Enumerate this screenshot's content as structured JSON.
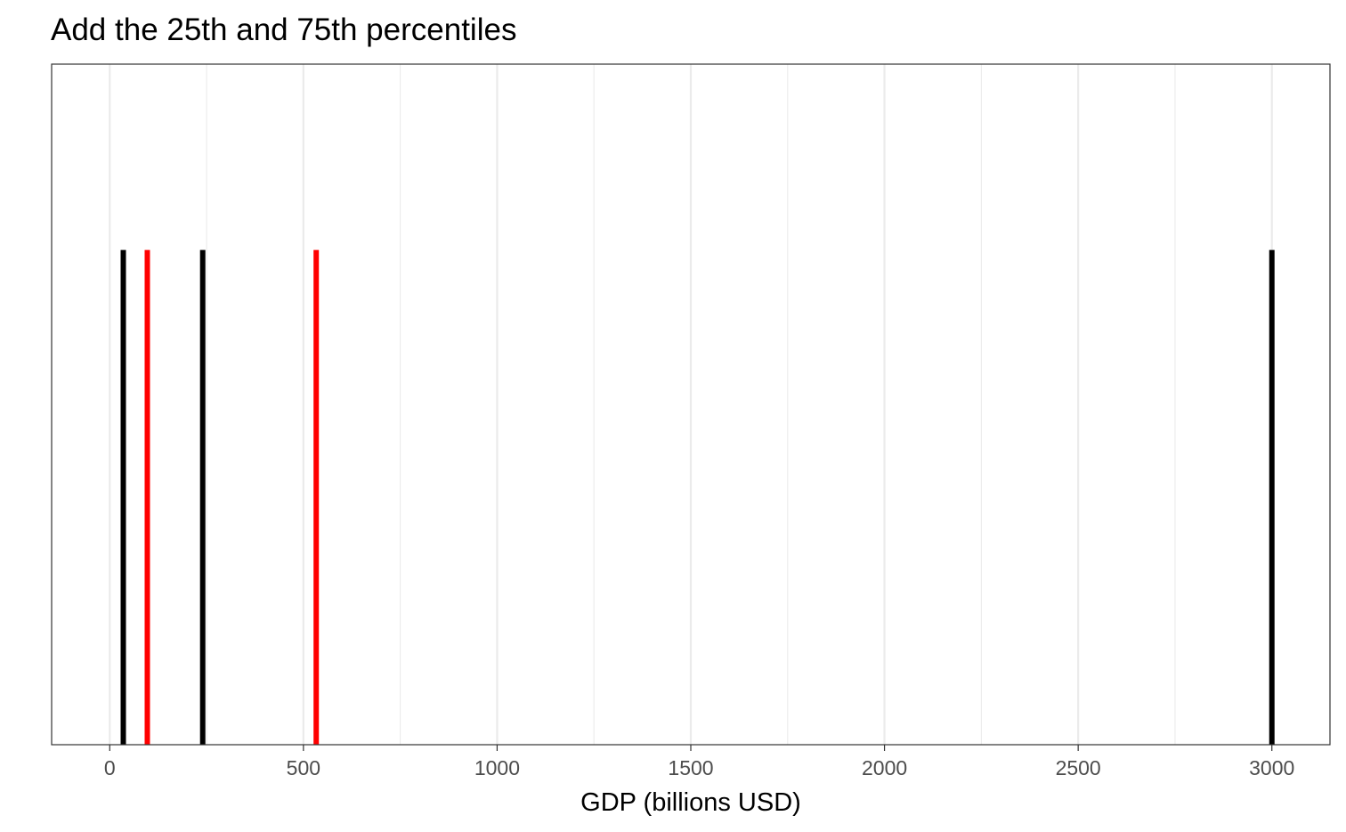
{
  "chart_data": {
    "type": "line",
    "title": "Add the 25th and 75th percentiles",
    "xlabel": "GDP (billions USD)",
    "ylabel": "",
    "xlim": [
      -150,
      3150
    ],
    "x_ticks": [
      0,
      500,
      1000,
      1500,
      2000,
      2500,
      3000
    ],
    "x_tick_labels": [
      "0",
      "500",
      "1000",
      "1500",
      "2000",
      "2500",
      "3000"
    ],
    "x_minor_ticks": [
      250,
      750,
      1250,
      1750,
      2250,
      2750
    ],
    "grid": true,
    "legend": "none",
    "segment_y_range_fraction": [
      0.0,
      0.727
    ],
    "series": [
      {
        "values": [
          35,
          240,
          3000
        ],
        "color": "#000000"
      },
      {
        "values": [
          97,
          533
        ],
        "color": "#ff0000"
      }
    ]
  }
}
